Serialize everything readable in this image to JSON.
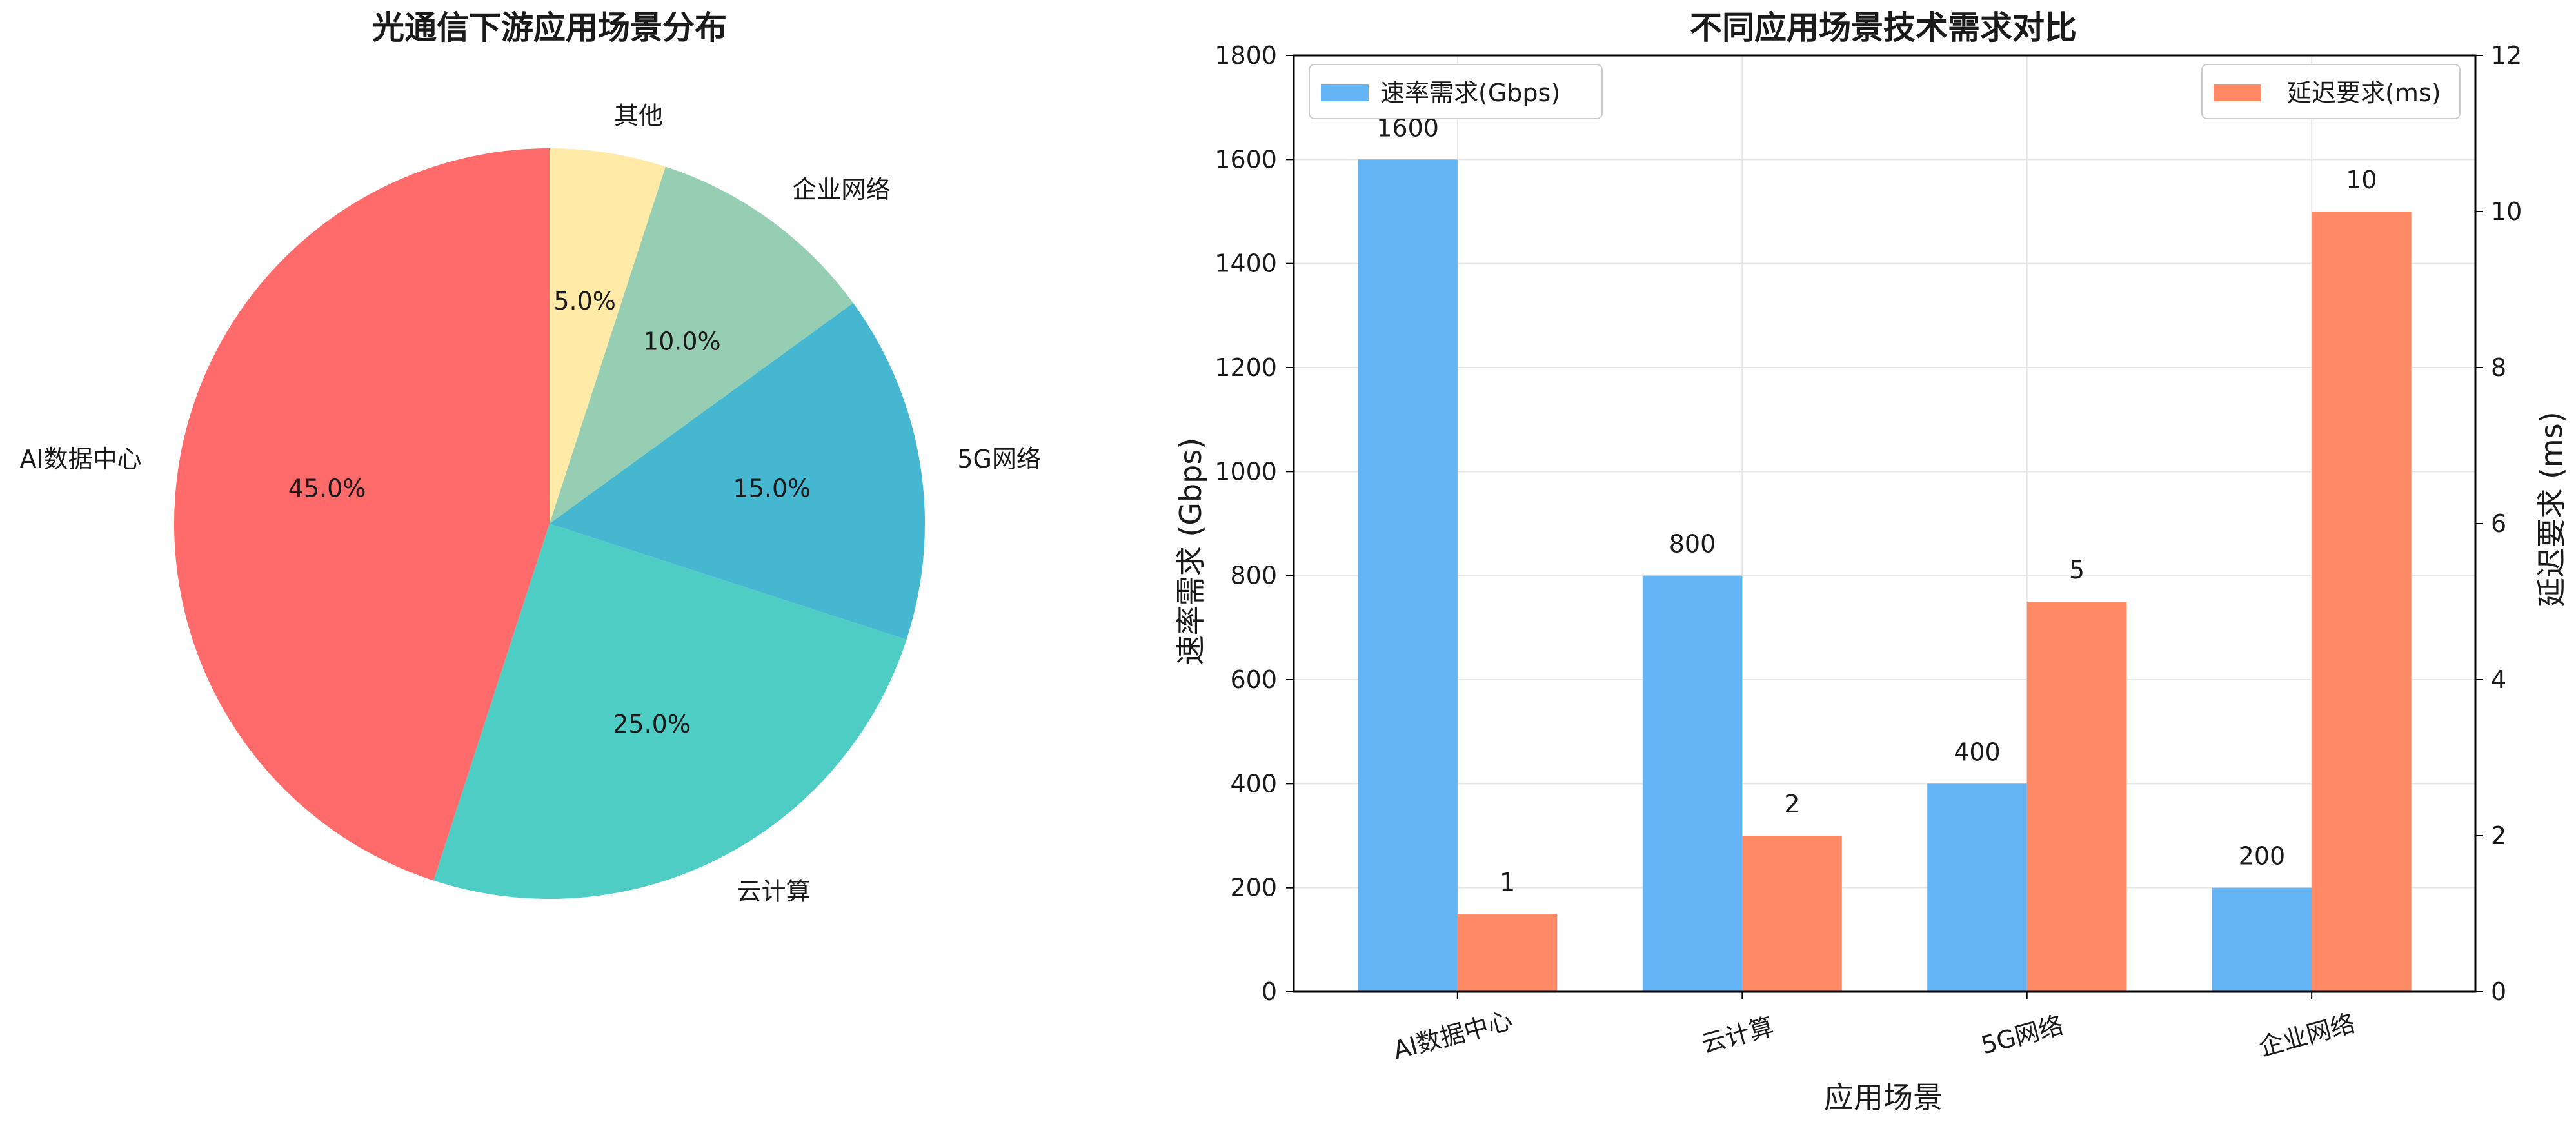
{
  "colors": {
    "pie": [
      "#ff6b6b",
      "#4ecdc4",
      "#45b7d1",
      "#96ceb4",
      "#ffeaa7"
    ],
    "speed": "#64b5f6",
    "latency": "#ff8a65",
    "grid": "#e6e6e6",
    "axis": "#000000"
  },
  "chart_data": [
    {
      "type": "pie",
      "title": "光通信下游应用场景分布",
      "categories": [
        "AI数据中心",
        "云计算",
        "5G网络",
        "企业网络",
        "其他"
      ],
      "values": [
        45.0,
        25.0,
        15.0,
        10.0,
        5.0
      ],
      "percent_labels": [
        "45.0%",
        "25.0%",
        "15.0%",
        "10.0%",
        "5.0%"
      ],
      "start_angle_deg": 90,
      "direction": "counterclockwise"
    },
    {
      "type": "bar",
      "title": "不同应用场景技术需求对比",
      "xlabel": "应用场景",
      "ylabel": "速率需求 (Gbps)",
      "y2label": "延迟要求 (ms)",
      "categories": [
        "AI数据中心",
        "云计算",
        "5G网络",
        "企业网络"
      ],
      "ylim": [
        0,
        1800
      ],
      "y2lim": [
        0,
        12
      ],
      "yticks": [
        "0",
        "200",
        "400",
        "600",
        "800",
        "1000",
        "1200",
        "1400",
        "1600",
        "1800"
      ],
      "y2ticks": [
        "0",
        "2",
        "4",
        "6",
        "8",
        "10",
        "12"
      ],
      "grid": true,
      "series": [
        {
          "name": "速率需求(Gbps)",
          "axis": "left",
          "values": [
            1600,
            800,
            400,
            200
          ],
          "labels": [
            "1600",
            "800",
            "400",
            "200"
          ],
          "legend_position": "upper-left"
        },
        {
          "name": "延迟要求(ms)",
          "axis": "right",
          "values": [
            1,
            2,
            5,
            10
          ],
          "labels": [
            "1",
            "2",
            "5",
            "10"
          ],
          "legend_position": "upper-right"
        }
      ]
    }
  ]
}
